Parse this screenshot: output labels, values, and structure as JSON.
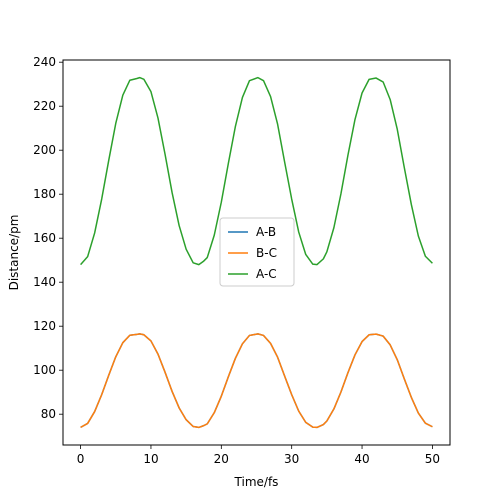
{
  "chart_data": {
    "type": "line",
    "title": "",
    "xlabel": "Time/fs",
    "ylabel": "Distance/pm",
    "xlim": [
      -2.5,
      52.5
    ],
    "ylim": [
      66,
      241
    ],
    "xticks": [
      0,
      10,
      20,
      30,
      40,
      50
    ],
    "yticks": [
      80,
      100,
      120,
      140,
      160,
      180,
      200,
      220,
      240
    ],
    "grid": false,
    "legend_position": "center",
    "x": [
      0,
      1,
      2,
      3,
      4,
      5,
      6,
      7,
      8,
      8.4,
      9,
      10,
      11,
      12,
      13,
      14,
      15,
      16,
      16.8,
      17.5,
      18,
      19,
      20,
      21,
      22,
      23,
      24,
      25.2,
      26,
      27,
      28,
      29,
      30,
      31,
      32,
      33,
      33.6,
      34.5,
      35,
      36,
      37,
      38,
      39,
      40,
      41,
      42,
      43,
      44,
      45,
      46,
      47,
      48,
      49,
      50
    ],
    "series": [
      {
        "name": "A-B",
        "color": "#1f77b4",
        "values": [
          74,
          75.8,
          81.2,
          88.9,
          97.7,
          106.1,
          112.5,
          115.9,
          116.3,
          116.5,
          116.1,
          113.3,
          107.3,
          99.1,
          90.4,
          82.9,
          77.5,
          74.4,
          74.0,
          74.8,
          75.6,
          80.7,
          88.2,
          97.0,
          105.4,
          112.0,
          115.8,
          116.5,
          115.8,
          112.2,
          105.9,
          97.3,
          88.9,
          81.4,
          76.3,
          74.1,
          74.0,
          75.3,
          76.9,
          82.4,
          90.1,
          98.9,
          107.0,
          113.0,
          116.1,
          116.4,
          115.5,
          111.5,
          104.8,
          96.1,
          87.7,
          80.5,
          75.9,
          74.3
        ]
      },
      {
        "name": "B-C",
        "color": "#ff7f0e",
        "values": [
          74,
          75.8,
          81.2,
          88.9,
          97.7,
          106.1,
          112.5,
          115.9,
          116.3,
          116.5,
          116.1,
          113.3,
          107.3,
          99.1,
          90.4,
          82.9,
          77.5,
          74.4,
          74.0,
          74.8,
          75.6,
          80.7,
          88.2,
          97.0,
          105.4,
          112.0,
          115.8,
          116.5,
          115.8,
          112.2,
          105.9,
          97.3,
          88.9,
          81.4,
          76.3,
          74.1,
          74.0,
          75.3,
          76.9,
          82.4,
          90.1,
          98.9,
          107.0,
          113.0,
          116.1,
          116.4,
          115.5,
          111.5,
          104.8,
          96.1,
          87.7,
          80.5,
          75.9,
          74.3
        ]
      },
      {
        "name": "A-C",
        "color": "#2ca02c",
        "values": [
          148,
          151.6,
          162.4,
          177.8,
          195.4,
          212.2,
          225.0,
          231.8,
          232.6,
          233.0,
          232.2,
          226.6,
          214.6,
          198.2,
          180.8,
          165.8,
          155.0,
          148.8,
          148.0,
          149.6,
          151.2,
          161.4,
          176.4,
          194.0,
          210.8,
          224.0,
          231.6,
          233.0,
          231.6,
          224.4,
          211.8,
          194.6,
          177.8,
          162.8,
          152.6,
          148.2,
          148.0,
          150.6,
          153.8,
          164.8,
          180.2,
          197.8,
          214.0,
          226.0,
          232.2,
          232.8,
          231.0,
          223.0,
          209.6,
          192.2,
          175.4,
          161.0,
          151.8,
          148.6
        ]
      }
    ]
  }
}
